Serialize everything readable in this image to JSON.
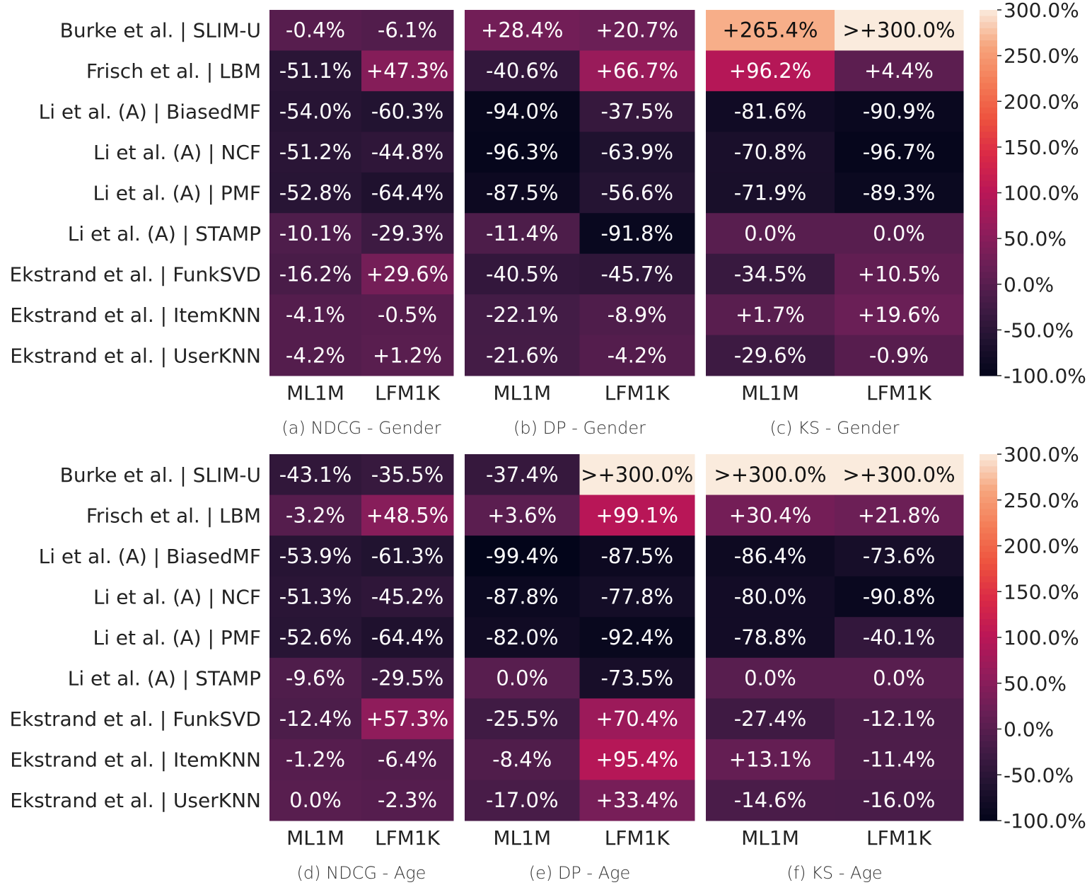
{
  "chart_data": {
    "type": "heatmap",
    "colormap": "rocket",
    "color_range": [
      -100,
      300
    ],
    "colorbar_ticks": [
      "300.0%",
      "250.0%",
      "200.0%",
      "150.0%",
      "100.0%",
      "50.0%",
      "0.0%",
      "-50.0%",
      "-100.0%"
    ],
    "rows": [
      "Burke et al. | SLIM-U",
      "Frisch et al. | LBM",
      "Li et al. (A) | BiasedMF",
      "Li et al. (A) | NCF",
      "Li et al. (A) | PMF",
      "Li et al. (A) | STAMP",
      "Ekstrand et al. | FunkSVD",
      "Ekstrand et al. | ItemKNN",
      "Ekstrand et al. | UserKNN"
    ],
    "columns": [
      "ML1M",
      "LFM1K"
    ],
    "panels": [
      {
        "caption": "(a) NDCG - Gender",
        "cells": [
          [
            "-0.4%",
            "-6.1%"
          ],
          [
            "-51.1%",
            "+47.3%"
          ],
          [
            "-54.0%",
            "-60.3%"
          ],
          [
            "-51.2%",
            "-44.8%"
          ],
          [
            "-52.8%",
            "-64.4%"
          ],
          [
            "-10.1%",
            "-29.3%"
          ],
          [
            "-16.2%",
            "+29.6%"
          ],
          [
            "-4.1%",
            "-0.5%"
          ],
          [
            "-4.2%",
            "+1.2%"
          ]
        ]
      },
      {
        "caption": "(b) DP - Gender",
        "cells": [
          [
            "+28.4%",
            "+20.7%"
          ],
          [
            "-40.6%",
            "+66.7%"
          ],
          [
            "-94.0%",
            "-37.5%"
          ],
          [
            "-96.3%",
            "-63.9%"
          ],
          [
            "-87.5%",
            "-56.6%"
          ],
          [
            "-11.4%",
            "-91.8%"
          ],
          [
            "-40.5%",
            "-45.7%"
          ],
          [
            "-22.1%",
            "-8.9%"
          ],
          [
            "-21.6%",
            "-4.2%"
          ]
        ]
      },
      {
        "caption": "(c) KS - Gender",
        "cells": [
          [
            "+265.4%",
            ">+300.0%"
          ],
          [
            "+96.2%",
            "+4.4%"
          ],
          [
            "-81.6%",
            "-90.9%"
          ],
          [
            "-70.8%",
            "-96.7%"
          ],
          [
            "-71.9%",
            "-89.3%"
          ],
          [
            "0.0%",
            "0.0%"
          ],
          [
            "-34.5%",
            "+10.5%"
          ],
          [
            "+1.7%",
            "+19.6%"
          ],
          [
            "-29.6%",
            "-0.9%"
          ]
        ]
      },
      {
        "caption": "(d) NDCG - Age",
        "cells": [
          [
            "-43.1%",
            "-35.5%"
          ],
          [
            "-3.2%",
            "+48.5%"
          ],
          [
            "-53.9%",
            "-61.3%"
          ],
          [
            "-51.3%",
            "-45.2%"
          ],
          [
            "-52.6%",
            "-64.4%"
          ],
          [
            "-9.6%",
            "-29.5%"
          ],
          [
            "-12.4%",
            "+57.3%"
          ],
          [
            "-1.2%",
            "-6.4%"
          ],
          [
            "0.0%",
            "-2.3%"
          ]
        ]
      },
      {
        "caption": "(e) DP - Age",
        "cells": [
          [
            "-37.4%",
            ">+300.0%"
          ],
          [
            "+3.6%",
            "+99.1%"
          ],
          [
            "-99.4%",
            "-87.5%"
          ],
          [
            "-87.8%",
            "-77.8%"
          ],
          [
            "-82.0%",
            "-92.4%"
          ],
          [
            "0.0%",
            "-73.5%"
          ],
          [
            "-25.5%",
            "+70.4%"
          ],
          [
            "-8.4%",
            "+95.4%"
          ],
          [
            "-17.0%",
            "+33.4%"
          ]
        ]
      },
      {
        "caption": "(f) KS - Age",
        "cells": [
          [
            ">+300.0%",
            ">+300.0%"
          ],
          [
            "+30.4%",
            "+21.8%"
          ],
          [
            "-86.4%",
            "-73.6%"
          ],
          [
            "-80.0%",
            "-90.8%"
          ],
          [
            "-78.8%",
            "-40.1%"
          ],
          [
            "0.0%",
            "0.0%"
          ],
          [
            "-27.4%",
            "-12.1%"
          ],
          [
            "+13.1%",
            "-11.4%"
          ],
          [
            "-14.6%",
            "-16.0%"
          ]
        ]
      }
    ]
  }
}
